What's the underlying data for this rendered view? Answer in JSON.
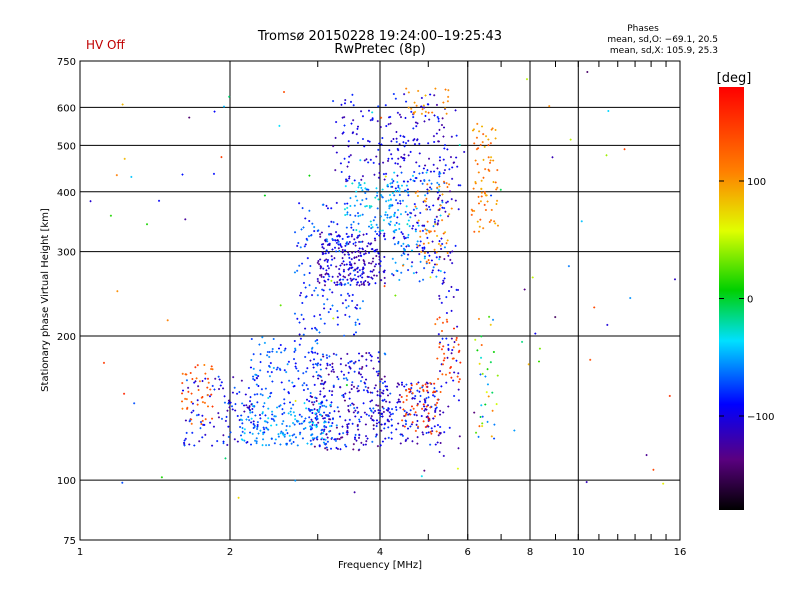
{
  "hv_status": "HV Off",
  "chart_data": {
    "type": "scatter",
    "title": "Tromsø 20150228 19:24:00–19:25:43",
    "subtitle": "RwPretec (8p)",
    "xlabel": "Frequency [MHz]",
    "ylabel": "Stationary phase Virtual Height [km]",
    "x_scale": "log",
    "y_scale": "log",
    "xlim": [
      1,
      16
    ],
    "ylim": [
      75,
      750
    ],
    "x_ticks": [
      1,
      2,
      4,
      6,
      8,
      10,
      16
    ],
    "x_tick_labels": [
      "1",
      "2",
      "4",
      "6",
      "8",
      "10",
      "16"
    ],
    "y_ticks": [
      75,
      100,
      200,
      300,
      400,
      500,
      600,
      750
    ],
    "y_tick_labels": [
      "75",
      "100",
      "200",
      "300",
      "400",
      "500",
      "600",
      "750"
    ],
    "grid": true,
    "phases_panel": {
      "heading": "Phases",
      "line_o": "mean, sd,O: −69.1, 20.5",
      "line_x": "mean, sd,X: 105.9, 25.3"
    },
    "colorbar": {
      "label": "[deg]",
      "range": [
        -180,
        180
      ],
      "ticks": [
        100,
        0,
        -100
      ],
      "tick_labels": [
        "100",
        "0",
        "−100"
      ]
    },
    "clusters": [
      {
        "fmin": 2.9,
        "fmax": 4.1,
        "hmin": 115,
        "hmax": 185,
        "phase_min": -140,
        "phase_max": -60,
        "count": 300
      },
      {
        "fmin": 2.1,
        "fmax": 3.2,
        "hmin": 118,
        "hmax": 145,
        "phase_min": -85,
        "phase_max": -35,
        "count": 200
      },
      {
        "fmin": 1.6,
        "fmax": 2.3,
        "hmin": 118,
        "hmax": 165,
        "phase_min": -125,
        "phase_max": -65,
        "count": 110
      },
      {
        "fmin": 1.6,
        "fmax": 1.85,
        "hmin": 130,
        "hmax": 175,
        "phase_min": 110,
        "phase_max": 155,
        "count": 45
      },
      {
        "fmin": 2.2,
        "fmax": 3.1,
        "hmin": 145,
        "hmax": 200,
        "phase_min": -95,
        "phase_max": -50,
        "count": 110
      },
      {
        "fmin": 3.9,
        "fmax": 5.3,
        "hmin": 118,
        "hmax": 160,
        "phase_min": -130,
        "phase_max": -70,
        "count": 170
      },
      {
        "fmin": 4.4,
        "fmax": 5.3,
        "hmin": 125,
        "hmax": 160,
        "phase_min": 120,
        "phase_max": 165,
        "count": 55
      },
      {
        "fmin": 3.0,
        "fmax": 4.1,
        "hmin": 255,
        "hmax": 330,
        "phase_min": -135,
        "phase_max": -85,
        "count": 220
      },
      {
        "fmin": 2.7,
        "fmax": 3.7,
        "hmin": 200,
        "hmax": 380,
        "phase_min": -105,
        "phase_max": -55,
        "count": 170
      },
      {
        "fmin": 3.4,
        "fmax": 4.6,
        "hmin": 330,
        "hmax": 420,
        "phase_min": -75,
        "phase_max": -25,
        "count": 120
      },
      {
        "fmin": 3.2,
        "fmax": 5.4,
        "hmin": 420,
        "hmax": 640,
        "phase_min": -125,
        "phase_max": -75,
        "count": 170
      },
      {
        "fmin": 4.2,
        "fmax": 5.4,
        "hmin": 260,
        "hmax": 440,
        "phase_min": -115,
        "phase_max": -40,
        "count": 160
      },
      {
        "fmin": 4.7,
        "fmax": 5.6,
        "hmin": 280,
        "hmax": 420,
        "phase_min": 85,
        "phase_max": 130,
        "count": 55
      },
      {
        "fmin": 5.2,
        "fmax": 5.8,
        "hmin": 110,
        "hmax": 600,
        "phase_min": -130,
        "phase_max": -80,
        "count": 110
      },
      {
        "fmin": 5.2,
        "fmax": 5.8,
        "hmin": 160,
        "hmax": 220,
        "phase_min": 120,
        "phase_max": 160,
        "count": 35
      },
      {
        "fmin": 6.1,
        "fmax": 6.9,
        "hmin": 330,
        "hmax": 560,
        "phase_min": 85,
        "phase_max": 135,
        "count": 75
      },
      {
        "fmin": 6.2,
        "fmax": 6.9,
        "hmin": 120,
        "hmax": 220,
        "phase_min": -80,
        "phase_max": 135,
        "count": 35
      },
      {
        "fmin": 4.5,
        "fmax": 5.5,
        "hmin": 580,
        "hmax": 660,
        "phase_min": 85,
        "phase_max": 130,
        "count": 25
      },
      {
        "fmin": 1.0,
        "fmax": 16,
        "hmin": 90,
        "hmax": 720,
        "phase_min": -150,
        "phase_max": 160,
        "count": 90
      }
    ]
  }
}
